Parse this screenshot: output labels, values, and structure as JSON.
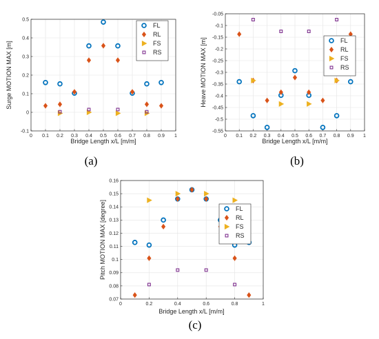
{
  "colors": {
    "FL": "#0072BD",
    "RL": "#D95319",
    "FS": "#EDB120",
    "RS": "#7E2F8E"
  },
  "chart_data": [
    {
      "type": "scatter",
      "panel_label": "(a)",
      "xlabel": "Bridge Length x/L [m/m]",
      "ylabel": "Surge MOTION MAX [m]",
      "xlim": [
        0,
        1
      ],
      "ylim": [
        -0.1,
        0.5
      ],
      "xticks": [
        "0",
        "0.1",
        "0.2",
        "0.3",
        "0.4",
        "0.5",
        "0.6",
        "0.7",
        "0.8",
        "0.9",
        "1"
      ],
      "yticks": [
        "-0.1",
        "0",
        "0.1",
        "0.2",
        "0.3",
        "0.4",
        "0.5"
      ],
      "grid": true,
      "legend_position": "top-right",
      "series": [
        {
          "name": "FL",
          "marker": "circle",
          "points": [
            [
              0.1,
              0.16
            ],
            [
              0.2,
              0.153
            ],
            [
              0.3,
              0.103
            ],
            [
              0.4,
              0.357
            ],
            [
              0.5,
              0.485
            ],
            [
              0.6,
              0.357
            ],
            [
              0.7,
              0.103
            ],
            [
              0.8,
              0.153
            ],
            [
              0.9,
              0.16
            ]
          ]
        },
        {
          "name": "RL",
          "marker": "diamond",
          "points": [
            [
              0.1,
              0.035
            ],
            [
              0.2,
              0.043
            ],
            [
              0.3,
              0.11
            ],
            [
              0.4,
              0.28
            ],
            [
              0.5,
              0.358
            ],
            [
              0.6,
              0.28
            ],
            [
              0.7,
              0.11
            ],
            [
              0.8,
              0.043
            ],
            [
              0.9,
              0.035
            ]
          ]
        },
        {
          "name": "FS",
          "marker": "triangle",
          "points": [
            [
              0.2,
              -0.005
            ],
            [
              0.4,
              0.0
            ],
            [
              0.6,
              -0.005
            ],
            [
              0.8,
              -0.005
            ]
          ]
        },
        {
          "name": "RS",
          "marker": "square",
          "points": [
            [
              0.2,
              0.003
            ],
            [
              0.4,
              0.015
            ],
            [
              0.6,
              0.015
            ],
            [
              0.8,
              0.003
            ]
          ]
        }
      ]
    },
    {
      "type": "scatter",
      "panel_label": "(b)",
      "xlabel": "Bridge Length x/L [m/m]",
      "ylabel": "Heave MOTION MAX [m]",
      "xlim": [
        0,
        1
      ],
      "ylim": [
        -0.55,
        -0.05
      ],
      "xticks": [
        "0",
        "0.1",
        "0.2",
        "0.3",
        "0.4",
        "0.5",
        "0.6",
        "0.7",
        "0.8",
        "0.9",
        "1"
      ],
      "yticks": [
        "-0.55",
        "-0.5",
        "-0.45",
        "-0.4",
        "-0.35",
        "-0.3",
        "-0.25",
        "-0.2",
        "-0.15",
        "-0.1",
        "-0.05"
      ],
      "grid": true,
      "legend_position": "top-right",
      "series": [
        {
          "name": "FL",
          "marker": "circle",
          "points": [
            [
              0.1,
              -0.34
            ],
            [
              0.2,
              -0.485
            ],
            [
              0.3,
              -0.535
            ],
            [
              0.4,
              -0.398
            ],
            [
              0.5,
              -0.293
            ],
            [
              0.6,
              -0.398
            ],
            [
              0.7,
              -0.535
            ],
            [
              0.8,
              -0.485
            ],
            [
              0.9,
              -0.34
            ]
          ]
        },
        {
          "name": "RL",
          "marker": "diamond",
          "points": [
            [
              0.1,
              -0.137
            ],
            [
              0.2,
              -0.335
            ],
            [
              0.3,
              -0.42
            ],
            [
              0.4,
              -0.385
            ],
            [
              0.5,
              -0.322
            ],
            [
              0.6,
              -0.385
            ],
            [
              0.7,
              -0.42
            ],
            [
              0.8,
              -0.335
            ],
            [
              0.9,
              -0.137
            ]
          ]
        },
        {
          "name": "FS",
          "marker": "triangle",
          "points": [
            [
              0.2,
              -0.335
            ],
            [
              0.4,
              -0.435
            ],
            [
              0.6,
              -0.435
            ],
            [
              0.8,
              -0.335
            ]
          ]
        },
        {
          "name": "RS",
          "marker": "square",
          "points": [
            [
              0.2,
              -0.075
            ],
            [
              0.4,
              -0.125
            ],
            [
              0.6,
              -0.125
            ],
            [
              0.8,
              -0.075
            ]
          ]
        }
      ]
    },
    {
      "type": "scatter",
      "panel_label": "(c)",
      "xlabel": "Bridge Length x/L [m/m]",
      "ylabel": "Pitch MOTION MAX [degree]",
      "xlim": [
        0,
        1
      ],
      "ylim": [
        0.07,
        0.16
      ],
      "xticks": [
        "0",
        "0.2",
        "0.4",
        "0.6",
        "0.8",
        "1"
      ],
      "yticks": [
        "0.07",
        "0.08",
        "0.09",
        "0.1",
        "0.11",
        "0.12",
        "0.13",
        "0.14",
        "0.15",
        "0.16"
      ],
      "grid": true,
      "legend_position": "right",
      "series": [
        {
          "name": "FL",
          "marker": "circle",
          "points": [
            [
              0.1,
              0.113
            ],
            [
              0.2,
              0.111
            ],
            [
              0.3,
              0.13
            ],
            [
              0.4,
              0.146
            ],
            [
              0.5,
              0.153
            ],
            [
              0.6,
              0.146
            ],
            [
              0.7,
              0.13
            ],
            [
              0.8,
              0.111
            ],
            [
              0.9,
              0.113
            ]
          ]
        },
        {
          "name": "RL",
          "marker": "diamond",
          "points": [
            [
              0.1,
              0.073
            ],
            [
              0.2,
              0.101
            ],
            [
              0.3,
              0.125
            ],
            [
              0.4,
              0.146
            ],
            [
              0.5,
              0.153
            ],
            [
              0.6,
              0.146
            ],
            [
              0.7,
              0.125
            ],
            [
              0.8,
              0.101
            ],
            [
              0.9,
              0.073
            ]
          ]
        },
        {
          "name": "FS",
          "marker": "triangle",
          "points": [
            [
              0.2,
              0.145
            ],
            [
              0.4,
              0.15
            ],
            [
              0.6,
              0.15
            ],
            [
              0.8,
              0.145
            ]
          ]
        },
        {
          "name": "RS",
          "marker": "square",
          "points": [
            [
              0.2,
              0.081
            ],
            [
              0.4,
              0.092
            ],
            [
              0.6,
              0.092
            ],
            [
              0.8,
              0.081
            ]
          ]
        }
      ]
    }
  ]
}
